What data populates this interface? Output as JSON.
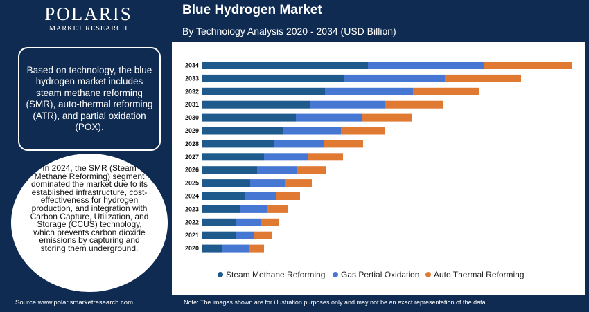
{
  "header": {
    "logo_brand": "POLARIS",
    "logo_sub": "MARKET RESEARCH",
    "title": "Blue Hydrogen Market",
    "subtitle": "By Technoiogy Analysis 2020 - 2034 (USD Billion)"
  },
  "info_box": {
    "text": "Based on technology, the blue hydrogen market includes steam methane reforming (SMR), auto-thermal reforming (ATR), and partial oxidation (POX)."
  },
  "circle_callout": {
    "text": "In 2024, the SMR (Steam Methane Reforming) segment dominated the market due to its established infrastructure, cost-effectiveness for hydrogen production, and integration with Carbon Capture, Utilization, and Storage (CCUS) technology, which prevents carbon dioxide emissions by capturing and storing them underground."
  },
  "footer": {
    "source": "Source:www.polarismarketresearch.com",
    "note": "Note: The images shown are for illustration purposes only and may not be an exact representation of the data."
  },
  "colors": {
    "background": "#0f2b52",
    "steam_methane": "#1f5a8c",
    "gas_partial": "#4677d2",
    "auto_thermal": "#e07a32"
  },
  "chart_data": {
    "type": "bar",
    "orientation": "horizontal",
    "stacked": true,
    "categories": [
      "2034",
      "2033",
      "2032",
      "2031",
      "2030",
      "2029",
      "2028",
      "2027",
      "2026",
      "2025",
      "2024",
      "2023",
      "2022",
      "2021",
      "2020"
    ],
    "series": [
      {
        "name": "Steam Methane Reforming",
        "color": "#1f5a8c",
        "values": [
          240,
          205,
          178,
          156,
          136,
          118,
          104,
          90,
          80,
          70,
          62,
          55,
          49,
          49,
          30
        ]
      },
      {
        "name": "Gas Pertial Oxidation",
        "color": "#4677d2",
        "values": [
          168,
          146,
          127,
          109,
          96,
          83,
          73,
          64,
          57,
          50,
          45,
          40,
          36,
          27,
          39
        ]
      },
      {
        "name": "Auto Thermal Reforming",
        "color": "#e07a32",
        "values": [
          127,
          110,
          95,
          83,
          72,
          64,
          56,
          50,
          43,
          39,
          35,
          30,
          27,
          25,
          21
        ]
      }
    ],
    "xlabel": "",
    "ylabel": "",
    "grid": false,
    "legend_position": "bottom"
  }
}
